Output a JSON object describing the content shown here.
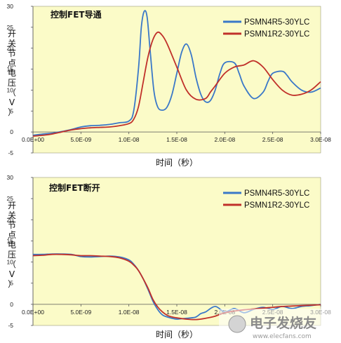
{
  "chart_data": [
    {
      "type": "line",
      "title": "控制FET导通",
      "xlabel": "时间（秒）",
      "ylabel": "开关节点电压（V）",
      "ylim": [
        -5,
        30
      ],
      "xlim": [
        0,
        3e-08
      ],
      "yticks": [
        "-5",
        "0",
        "5",
        "10",
        "15",
        "20",
        "25",
        "30"
      ],
      "xticks": [
        "0.0E+00",
        "5.0E-09",
        "1.0E-08",
        "1.5E-08",
        "2.0E-08",
        "2.5E-08",
        "3.0E-08"
      ],
      "grid": false,
      "legend_position": "top-right",
      "series": [
        {
          "name": "PSMN4R5-30YLC",
          "color": "#3a78c8",
          "x": [
            0,
            1e-09,
            2e-09,
            3e-09,
            4e-09,
            5e-09,
            6e-09,
            7e-09,
            8e-09,
            9e-09,
            1e-08,
            1.05e-08,
            1.1e-08,
            1.13e-08,
            1.16e-08,
            1.19e-08,
            1.22e-08,
            1.26e-08,
            1.3e-08,
            1.35e-08,
            1.4e-08,
            1.45e-08,
            1.5e-08,
            1.55e-08,
            1.6e-08,
            1.65e-08,
            1.7e-08,
            1.75e-08,
            1.8e-08,
            1.85e-08,
            1.9e-08,
            1.95e-08,
            2e-08,
            2.1e-08,
            2.15e-08,
            2.2e-08,
            2.3e-08,
            2.4e-08,
            2.45e-08,
            2.5e-08,
            2.6e-08,
            2.65e-08,
            2.7e-08,
            2.8e-08,
            2.9e-08,
            3e-08
          ],
          "y": [
            -0.8,
            -0.5,
            -0.3,
            0.1,
            0.6,
            1.2,
            1.5,
            1.6,
            1.8,
            2.2,
            2.6,
            5,
            15,
            25,
            28.8,
            27.5,
            20,
            10,
            6,
            5.2,
            6,
            9,
            14,
            19,
            21,
            18.5,
            13,
            9,
            7.2,
            7.5,
            10,
            14,
            16.5,
            16.5,
            14,
            11,
            8,
            9.5,
            12,
            14,
            14.5,
            13.5,
            12,
            10,
            9.5,
            10.5
          ]
        },
        {
          "name": "PSMN1R2-30YLC",
          "color": "#c0302a",
          "x": [
            0,
            1e-09,
            2e-09,
            3e-09,
            4e-09,
            5e-09,
            6e-09,
            7e-09,
            8e-09,
            9e-09,
            1e-08,
            1.05e-08,
            1.1e-08,
            1.15e-08,
            1.2e-08,
            1.25e-08,
            1.3e-08,
            1.35e-08,
            1.4e-08,
            1.5e-08,
            1.6e-08,
            1.7e-08,
            1.8e-08,
            1.85e-08,
            1.9e-08,
            2e-08,
            2.1e-08,
            2.2e-08,
            2.3e-08,
            2.4e-08,
            2.5e-08,
            2.6e-08,
            2.7e-08,
            2.8e-08,
            2.9e-08,
            3e-08
          ],
          "y": [
            -1,
            -0.8,
            -0.5,
            0,
            0.5,
            0.8,
            1.0,
            1.1,
            1.2,
            1.5,
            2,
            3,
            6,
            12,
            18,
            22,
            23.8,
            23,
            21,
            15.5,
            10,
            7.8,
            8,
            9.5,
            11,
            14,
            15.5,
            16,
            17,
            15.5,
            12.5,
            10,
            8.8,
            9,
            10,
            12
          ]
        }
      ]
    },
    {
      "type": "line",
      "title": "控制FET断开",
      "xlabel": "时间（秒）",
      "ylabel": "开关节点电压（V）",
      "ylim": [
        -5,
        30
      ],
      "xlim": [
        0,
        3e-08
      ],
      "yticks": [
        "-5",
        "0",
        "5",
        "10",
        "15",
        "20",
        "25",
        "30"
      ],
      "xticks": [
        "0.0E+00",
        "5.0E-09",
        "1.0E-08",
        "1.5E-08",
        "2.0E-08",
        "2.5E-08",
        "3.0E-08"
      ],
      "grid": false,
      "legend_position": "top-right",
      "series": [
        {
          "name": "PSMN4R5-30YLC",
          "color": "#3a78c8",
          "x": [
            0,
            1e-09,
            2e-09,
            3e-09,
            4e-09,
            5e-09,
            6e-09,
            7e-09,
            8e-09,
            9e-09,
            1e-08,
            1.05e-08,
            1.1e-08,
            1.15e-08,
            1.2e-08,
            1.25e-08,
            1.3e-08,
            1.35e-08,
            1.4e-08,
            1.45e-08,
            1.5e-08,
            1.55e-08,
            1.6e-08,
            1.65e-08,
            1.7e-08,
            1.75e-08,
            1.8e-08,
            1.9e-08,
            2e-08,
            2.1e-08,
            2.2e-08,
            2.3e-08,
            2.4e-08,
            2.5e-08,
            2.6e-08,
            2.7e-08,
            2.8e-08,
            2.9e-08,
            3e-08
          ],
          "y": [
            11.8,
            11.8,
            11.9,
            11.9,
            11.8,
            11.3,
            11.2,
            11.3,
            11.4,
            11.2,
            10.5,
            9.5,
            8,
            6,
            3.5,
            0.8,
            -1.2,
            -2.5,
            -3,
            -3.3,
            -3.5,
            -3.4,
            -3.3,
            -3.2,
            -3,
            -2.2,
            -1.8,
            -0.5,
            -1.8,
            -1,
            -2,
            -1.2,
            -0.7,
            -1.2,
            -0.5,
            -1,
            -0.5,
            -0.3,
            0
          ]
        },
        {
          "name": "PSMN1R2-30YLC",
          "color": "#c0302a",
          "x": [
            0,
            1e-09,
            2e-09,
            3e-09,
            4e-09,
            5e-09,
            6e-09,
            7e-09,
            8e-09,
            9e-09,
            1e-08,
            1.05e-08,
            1.1e-08,
            1.15e-08,
            1.2e-08,
            1.25e-08,
            1.3e-08,
            1.35e-08,
            1.4e-08,
            1.45e-08,
            1.5e-08,
            1.6e-08,
            1.7e-08,
            1.8e-08,
            1.9e-08,
            2e-08,
            2.1e-08,
            2.2e-08,
            2.3e-08,
            2.4e-08,
            2.5e-08,
            2.6e-08,
            2.7e-08,
            2.8e-08,
            2.9e-08,
            3e-08
          ],
          "y": [
            11.5,
            11.6,
            11.8,
            11.8,
            11.7,
            11.5,
            11.5,
            11.4,
            11.3,
            11,
            10.2,
            9.3,
            8,
            6,
            3.8,
            1.2,
            -0.6,
            -1.8,
            -2.6,
            -3,
            -3.2,
            -3.5,
            -3.6,
            -3.3,
            -2.8,
            -2,
            -1.6,
            -1.3,
            -1.1,
            -0.9,
            -0.7,
            -0.5,
            -0.4,
            -0.3,
            -0.2,
            -0.1
          ]
        }
      ]
    }
  ],
  "watermark": {
    "text": "电子发烧友",
    "url": "www.elecfans.com"
  }
}
